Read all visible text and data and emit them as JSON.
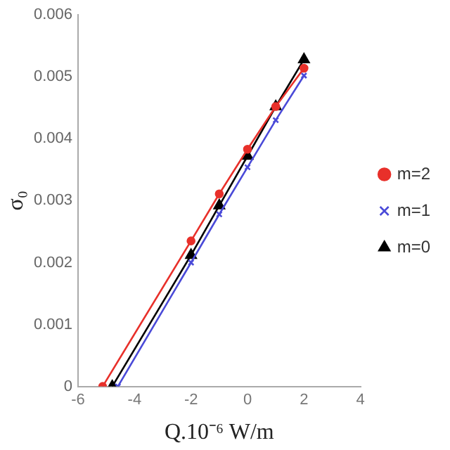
{
  "chart_data": {
    "type": "line",
    "xlabel": "Q.10⁻⁶ W/m",
    "ylabel": "σ₀",
    "xlim": [
      -6,
      4
    ],
    "xticks": [
      -6,
      -4,
      -2,
      0,
      2,
      4
    ],
    "ylim": [
      0,
      0.006
    ],
    "yticks": [
      0,
      0.001,
      0.002,
      0.003,
      0.004,
      0.005,
      0.006
    ],
    "grid": false,
    "legend": "right",
    "line_style": "solid",
    "series": [
      {
        "name": "m=2",
        "color": "#e8302a",
        "marker": "circle",
        "x": [
          -5.13,
          -2,
          -1,
          0,
          1,
          2
        ],
        "values": [
          0,
          0.00235,
          0.00311,
          0.00383,
          0.00452,
          0.00514
        ]
      },
      {
        "name": "m=1",
        "color": "#4a4ad8",
        "marker": "cross",
        "x": [
          -4.59,
          -2,
          -1,
          0,
          1,
          2
        ],
        "values": [
          0,
          0.002,
          0.00278,
          0.00354,
          0.0043,
          0.00502
        ]
      },
      {
        "name": "m=0",
        "color": "#000000",
        "marker": "triangle",
        "x": [
          -4.79,
          -2,
          -1,
          0,
          1,
          2
        ],
        "values": [
          0,
          0.00212,
          0.00292,
          0.00372,
          0.00452,
          0.00528
        ]
      }
    ]
  }
}
